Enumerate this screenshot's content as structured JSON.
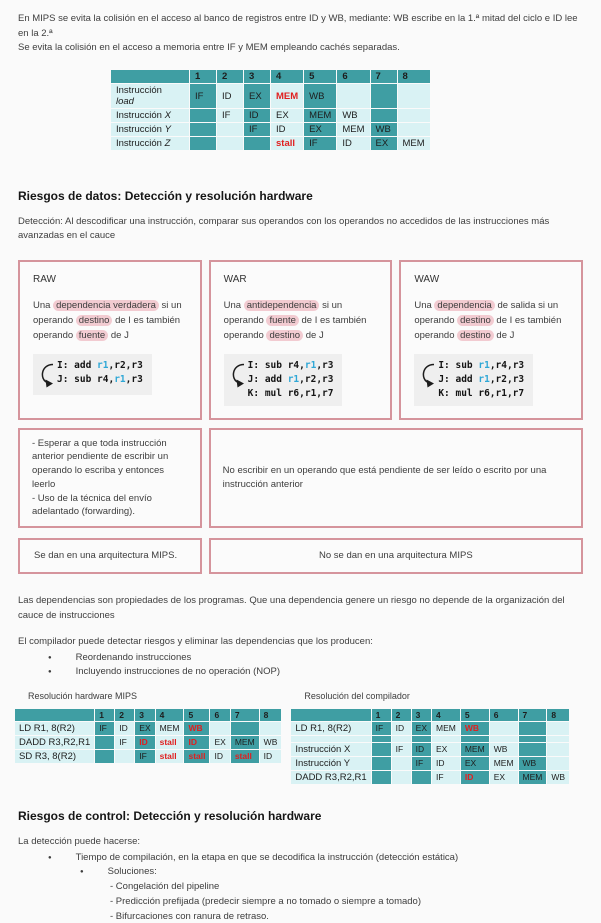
{
  "intro": {
    "line1": "En MIPS se evita la colisión en el acceso al banco de registros entre ID y WB, mediante: WB escribe en la 1.ª mitad del ciclo e ID lee en la 2.ª",
    "line2": "Se evita la colisión en el acceso a memoria entre IF y MEM empleando cachés separadas."
  },
  "colors": {
    "teal": "#3f9ea3",
    "light_cell": "#d9f2f4",
    "red_text": "#e01f1f",
    "pink_border": "#d5949c",
    "highlight_pink": "#f2cbd1",
    "register_blue": "#2ea7d6"
  },
  "pipeline_table": {
    "headers": [
      "",
      "1",
      "2",
      "3",
      "4",
      "5",
      "6",
      "7",
      "8"
    ],
    "rows": [
      {
        "label_pre": "Instrucción",
        "label_it": "load",
        "label_break": true,
        "cells": [
          {
            "c": 1,
            "t": "IF"
          },
          {
            "c": 2,
            "t": "ID"
          },
          {
            "c": 3,
            "t": "EX"
          },
          {
            "c": 4,
            "t": "MEM",
            "red": true
          },
          {
            "c": 5,
            "t": "WB"
          }
        ]
      },
      {
        "label_pre": "Instrucción ",
        "label_it": "X",
        "cells": [
          {
            "c": 2,
            "t": "IF"
          },
          {
            "c": 3,
            "t": "ID"
          },
          {
            "c": 4,
            "t": "EX"
          },
          {
            "c": 5,
            "t": "MEM"
          },
          {
            "c": 6,
            "t": "WB"
          }
        ]
      },
      {
        "label_pre": "Instrucción ",
        "label_it": "Y",
        "cells": [
          {
            "c": 3,
            "t": "IF"
          },
          {
            "c": 4,
            "t": "ID"
          },
          {
            "c": 5,
            "t": "EX"
          },
          {
            "c": 6,
            "t": "MEM"
          },
          {
            "c": 7,
            "t": "WB"
          }
        ]
      },
      {
        "label_pre": "Instrucción ",
        "label_it": "Z",
        "cells": [
          {
            "c": 4,
            "t": "stall",
            "red": true
          },
          {
            "c": 5,
            "t": "IF"
          },
          {
            "c": 6,
            "t": "ID"
          },
          {
            "c": 7,
            "t": "EX"
          },
          {
            "c": 8,
            "t": "MEM"
          }
        ]
      }
    ]
  },
  "data_hazards": {
    "heading": "Riesgos de datos: Detección y resolución hardware",
    "detection": "Detección: Al descodificar una instrucción, comparar sus operandos con los operandos no accedidos de las instrucciones más avanzadas en el cauce",
    "cards": [
      {
        "title": "RAW",
        "description": [
          {
            "t": "Una "
          },
          {
            "t": "dependencia verdadera",
            "h": true
          },
          {
            "t": " si un operando "
          },
          {
            "t": "destino",
            "h": true
          },
          {
            "t": " de I es también operando "
          },
          {
            "t": "fuente",
            "h": true
          },
          {
            "t": " de J"
          }
        ],
        "code": [
          [
            {
              "t": "I: add "
            },
            {
              "t": "r1",
              "r": true
            },
            {
              "t": ",r2,r3"
            }
          ],
          [
            {
              "t": "J: sub r4,"
            },
            {
              "t": "r1",
              "r": true
            },
            {
              "t": ",r3"
            }
          ]
        ]
      },
      {
        "title": "WAR",
        "description": [
          {
            "t": "Una "
          },
          {
            "t": "antidependencia",
            "h": true
          },
          {
            "t": " si un operando "
          },
          {
            "t": "fuente",
            "h": true
          },
          {
            "t": " de I es también operando "
          },
          {
            "t": "destino",
            "h": true
          },
          {
            "t": " de J"
          }
        ],
        "code": [
          [
            {
              "t": "I: sub r4,"
            },
            {
              "t": "r1",
              "r": true
            },
            {
              "t": ",r3"
            }
          ],
          [
            {
              "t": "J: add "
            },
            {
              "t": "r1",
              "r": true
            },
            {
              "t": ",r2,r3"
            }
          ],
          [
            {
              "t": "K: mul r6,r1,r7"
            }
          ]
        ]
      },
      {
        "title": "WAW",
        "description": [
          {
            "t": "Una "
          },
          {
            "t": "dependencia",
            "h": true
          },
          {
            "t": " de salida si un operando "
          },
          {
            "t": "destino",
            "h": true
          },
          {
            "t": " de I es también operando "
          },
          {
            "t": "destino",
            "h": true
          },
          {
            "t": " de J"
          }
        ],
        "code": [
          [
            {
              "t": "I: sub "
            },
            {
              "t": "r1",
              "r": true
            },
            {
              "t": ",r4,r3"
            }
          ],
          [
            {
              "t": "J: add "
            },
            {
              "t": "r1",
              "r": true
            },
            {
              "t": ",r2,r3"
            }
          ],
          [
            {
              "t": "K: mul r6,r1,r7"
            }
          ]
        ]
      }
    ],
    "resolution_left": [
      "- Esperar a que toda instrucción anterior pendiente de escribir un operando lo escriba y entonces leerlo",
      "- Uso de la técnica del envío adelantado (forwarding)."
    ],
    "resolution_right": "No escribir en un operando que está pendiente de ser leído o escrito por una instrucción anterior",
    "mips_left": "Se dan en una arquitectura MIPS.",
    "mips_right": "No se dan en una arquitectura MIPS"
  },
  "notes": {
    "para1": "Las dependencias son propiedades de los programas. Que una dependencia genere un riesgo no depende de la organización del cauce de instrucciones",
    "para2": "El compilador puede detectar riesgos y eliminar las dependencias que los producen:",
    "bullets": [
      "Reordenando instrucciones",
      "Incluyendo instrucciones de no operación (NOP)"
    ]
  },
  "hw_table": {
    "title": "Resolución hardware MIPS",
    "headers": [
      "",
      "1",
      "2",
      "3",
      "4",
      "5",
      "6",
      "7",
      "8"
    ],
    "rows": [
      {
        "label": "LD R1, 8(R2)",
        "cells": [
          {
            "c": 1,
            "t": "IF"
          },
          {
            "c": 2,
            "t": "ID"
          },
          {
            "c": 3,
            "t": "EX"
          },
          {
            "c": 4,
            "t": "MEM"
          },
          {
            "c": 5,
            "t": "WB",
            "red": true
          }
        ]
      },
      {
        "label": "DADD R3,R2,R1",
        "cells": [
          {
            "c": 2,
            "t": "IF"
          },
          {
            "c": 3,
            "t": "ID",
            "red": true
          },
          {
            "c": 4,
            "t": "stall",
            "red": true
          },
          {
            "c": 5,
            "t": "ID",
            "red": true
          },
          {
            "c": 6,
            "t": "EX"
          },
          {
            "c": 7,
            "t": "MEM"
          },
          {
            "c": 8,
            "t": "WB"
          }
        ]
      },
      {
        "label": "SD R3, 8(R2)",
        "cells": [
          {
            "c": 3,
            "t": "IF"
          },
          {
            "c": 4,
            "t": "stall",
            "red": true
          },
          {
            "c": 5,
            "t": "stall",
            "red": true
          },
          {
            "c": 6,
            "t": "ID"
          },
          {
            "c": 7,
            "t": "stall",
            "red": true
          },
          {
            "c": 8,
            "t": "ID"
          }
        ]
      }
    ]
  },
  "compiler_table": {
    "title": "Resolución del compilador",
    "headers": [
      "",
      "1",
      "2",
      "3",
      "4",
      "5",
      "6",
      "7",
      "8"
    ],
    "rows": [
      {
        "label": "LD R1, 8(R2)",
        "spacer": true,
        "cells": [
          {
            "c": 1,
            "t": "IF"
          },
          {
            "c": 2,
            "t": "ID"
          },
          {
            "c": 3,
            "t": "EX"
          },
          {
            "c": 4,
            "t": "MEM"
          },
          {
            "c": 5,
            "t": "WB",
            "red": true
          }
        ]
      },
      {
        "label": "Instrucción X",
        "cells": [
          {
            "c": 2,
            "t": "IF"
          },
          {
            "c": 3,
            "t": "ID"
          },
          {
            "c": 4,
            "t": "EX"
          },
          {
            "c": 5,
            "t": "MEM"
          },
          {
            "c": 6,
            "t": "WB"
          }
        ]
      },
      {
        "label": "Instrucción Y",
        "cells": [
          {
            "c": 3,
            "t": "IF"
          },
          {
            "c": 4,
            "t": "ID"
          },
          {
            "c": 5,
            "t": "EX"
          },
          {
            "c": 6,
            "t": "MEM"
          },
          {
            "c": 7,
            "t": "WB"
          }
        ]
      },
      {
        "label": "DADD R3,R2,R1",
        "cells": [
          {
            "c": 4,
            "t": "IF"
          },
          {
            "c": 5,
            "t": "ID",
            "red": true
          },
          {
            "c": 6,
            "t": "EX"
          },
          {
            "c": 7,
            "t": "MEM"
          },
          {
            "c": 8,
            "t": "WB"
          }
        ]
      }
    ]
  },
  "control_hazards": {
    "heading": "Riesgos de control: Detección y resolución hardware",
    "intro": "La detección puede hacerse:",
    "bullet1": "Tiempo de compilación, en la etapa en que se decodifica la instrucción (detección estática)",
    "bullet2": "Soluciones:",
    "sub_items": [
      "- Congelación del pipeline",
      "- Predicción prefijada (predecir siempre a no tomado o siempre a tomado)",
      "- Bifurcaciones con ranura de retraso."
    ]
  }
}
